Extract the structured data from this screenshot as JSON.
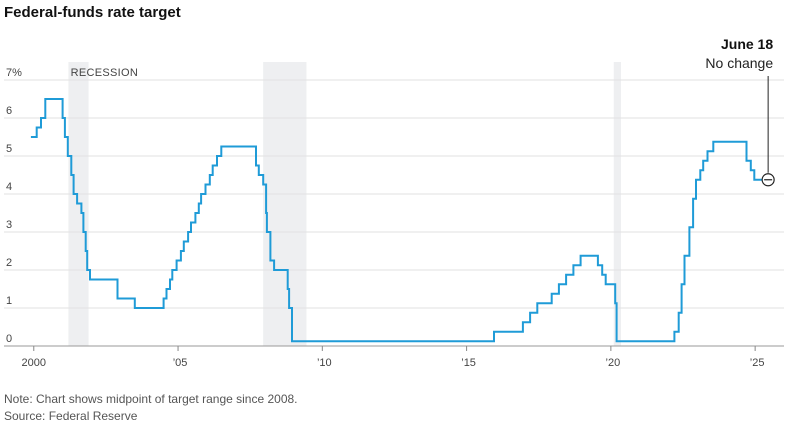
{
  "chart_data": {
    "type": "line",
    "title": "Federal-funds rate target",
    "xlabel": "",
    "ylabel": "",
    "xlim": [
      1999.8,
      2026.0
    ],
    "ylim": [
      0,
      7
    ],
    "grid": true,
    "x_ticks": [
      {
        "value": 2000,
        "label": "2000"
      },
      {
        "value": 2005,
        "label": "’05"
      },
      {
        "value": 2010,
        "label": "’10"
      },
      {
        "value": 2015,
        "label": "’15"
      },
      {
        "value": 2020,
        "label": "’20"
      },
      {
        "value": 2025,
        "label": "’25"
      }
    ],
    "y_ticks": [
      {
        "value": 0,
        "label": "0"
      },
      {
        "value": 1,
        "label": "1"
      },
      {
        "value": 2,
        "label": "2"
      },
      {
        "value": 3,
        "label": "3"
      },
      {
        "value": 4,
        "label": "4"
      },
      {
        "value": 5,
        "label": "5"
      },
      {
        "value": 6,
        "label": "6"
      },
      {
        "value": 7,
        "label": "7%"
      }
    ],
    "recessions": [
      {
        "start": 2001.2,
        "end": 2001.9
      },
      {
        "start": 2007.95,
        "end": 2009.45
      },
      {
        "start": 2020.1,
        "end": 2020.35
      }
    ],
    "recession_label": "RECESSION",
    "series": [
      {
        "color": "#1f9bd7",
        "step": true,
        "points": [
          [
            1999.9,
            5.5
          ],
          [
            2000.1,
            5.75
          ],
          [
            2000.25,
            6.0
          ],
          [
            2000.4,
            6.5
          ],
          [
            2001.0,
            6.0
          ],
          [
            2001.08,
            5.5
          ],
          [
            2001.18,
            5.0
          ],
          [
            2001.3,
            4.5
          ],
          [
            2001.38,
            4.0
          ],
          [
            2001.5,
            3.75
          ],
          [
            2001.65,
            3.5
          ],
          [
            2001.72,
            3.0
          ],
          [
            2001.8,
            2.5
          ],
          [
            2001.85,
            2.0
          ],
          [
            2001.95,
            1.75
          ],
          [
            2002.9,
            1.25
          ],
          [
            2003.5,
            1.0
          ],
          [
            2004.5,
            1.25
          ],
          [
            2004.6,
            1.5
          ],
          [
            2004.72,
            1.75
          ],
          [
            2004.8,
            2.0
          ],
          [
            2004.95,
            2.25
          ],
          [
            2005.1,
            2.5
          ],
          [
            2005.2,
            2.75
          ],
          [
            2005.35,
            3.0
          ],
          [
            2005.45,
            3.25
          ],
          [
            2005.6,
            3.5
          ],
          [
            2005.72,
            3.75
          ],
          [
            2005.8,
            4.0
          ],
          [
            2005.95,
            4.25
          ],
          [
            2006.1,
            4.5
          ],
          [
            2006.2,
            4.75
          ],
          [
            2006.35,
            5.0
          ],
          [
            2006.5,
            5.25
          ],
          [
            2007.7,
            4.75
          ],
          [
            2007.8,
            4.5
          ],
          [
            2007.95,
            4.25
          ],
          [
            2008.05,
            3.5
          ],
          [
            2008.08,
            3.0
          ],
          [
            2008.2,
            2.25
          ],
          [
            2008.33,
            2.0
          ],
          [
            2008.8,
            1.5
          ],
          [
            2008.85,
            1.0
          ],
          [
            2008.95,
            0.125
          ],
          [
            2015.95,
            0.375
          ],
          [
            2016.95,
            0.625
          ],
          [
            2017.2,
            0.875
          ],
          [
            2017.45,
            1.125
          ],
          [
            2017.95,
            1.375
          ],
          [
            2018.2,
            1.625
          ],
          [
            2018.45,
            1.875
          ],
          [
            2018.7,
            2.125
          ],
          [
            2018.95,
            2.375
          ],
          [
            2019.55,
            2.125
          ],
          [
            2019.7,
            1.875
          ],
          [
            2019.82,
            1.625
          ],
          [
            2020.15,
            1.125
          ],
          [
            2020.2,
            0.125
          ],
          [
            2022.2,
            0.375
          ],
          [
            2022.35,
            0.875
          ],
          [
            2022.45,
            1.625
          ],
          [
            2022.55,
            2.375
          ],
          [
            2022.72,
            3.125
          ],
          [
            2022.85,
            3.875
          ],
          [
            2022.95,
            4.375
          ],
          [
            2023.1,
            4.625
          ],
          [
            2023.2,
            4.875
          ],
          [
            2023.35,
            5.125
          ],
          [
            2023.55,
            5.375
          ],
          [
            2024.7,
            4.875
          ],
          [
            2024.85,
            4.625
          ],
          [
            2024.97,
            4.375
          ],
          [
            2025.3,
            4.375
          ]
        ]
      }
    ],
    "annotation": {
      "x": 2025.45,
      "y": 4.375,
      "date": "June 18",
      "text": "No change"
    }
  },
  "notes": [
    "Note: Chart shows midpoint of target range since 2008.",
    "Source: Federal Reserve"
  ]
}
